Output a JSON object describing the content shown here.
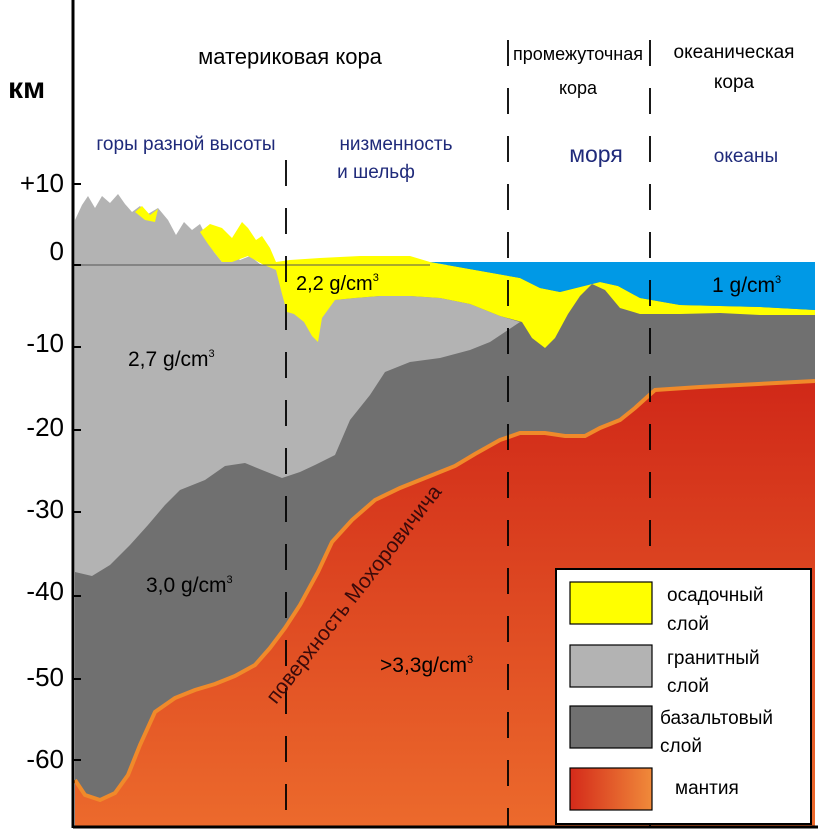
{
  "axis": {
    "unit": "км",
    "ticks": [
      "+10",
      "0",
      "-10",
      "-20",
      "-30",
      "-40",
      "-50",
      "-60"
    ]
  },
  "zones": {
    "continental": "материковая кора",
    "transitional_1": "промежуточная",
    "transitional_2": "кора",
    "oceanic_1": "океаническая",
    "oceanic_2": "кора"
  },
  "regions": {
    "mountains": "горы разной высоты",
    "lowland_1": "низменность",
    "lowland_2": "и шельф",
    "seas": "моря",
    "oceans": "океаны"
  },
  "densities": {
    "sediment": "2,2 g/cm",
    "granite": "2,7 g/cm",
    "basalt": "3,0 g/cm",
    "mantle": ">3,3g/cm",
    "water": "1 g/cm",
    "cube_exponent": "3"
  },
  "moho_label": "поверхность Мохоровичича",
  "legend": {
    "items": [
      {
        "line1": "осадочный",
        "line2": "слой",
        "color": "#ffff00"
      },
      {
        "line1": "гранитный",
        "line2": "слой",
        "color": "#b3b3b3"
      },
      {
        "line1": "базальтовый",
        "line2": "слой",
        "color": "#707070"
      },
      {
        "line1": "мантия",
        "line2": "",
        "color": "#e8401f"
      }
    ]
  },
  "colors": {
    "water": "#0099e6",
    "sediment": "#ffff00",
    "granite": "#b3b3b3",
    "basalt": "#707070",
    "mantle_top": "#d42a1a",
    "mantle_bottom": "#ee6a2a",
    "moho_line": "#f08a2a",
    "label_blue": "#1f2a7a"
  }
}
